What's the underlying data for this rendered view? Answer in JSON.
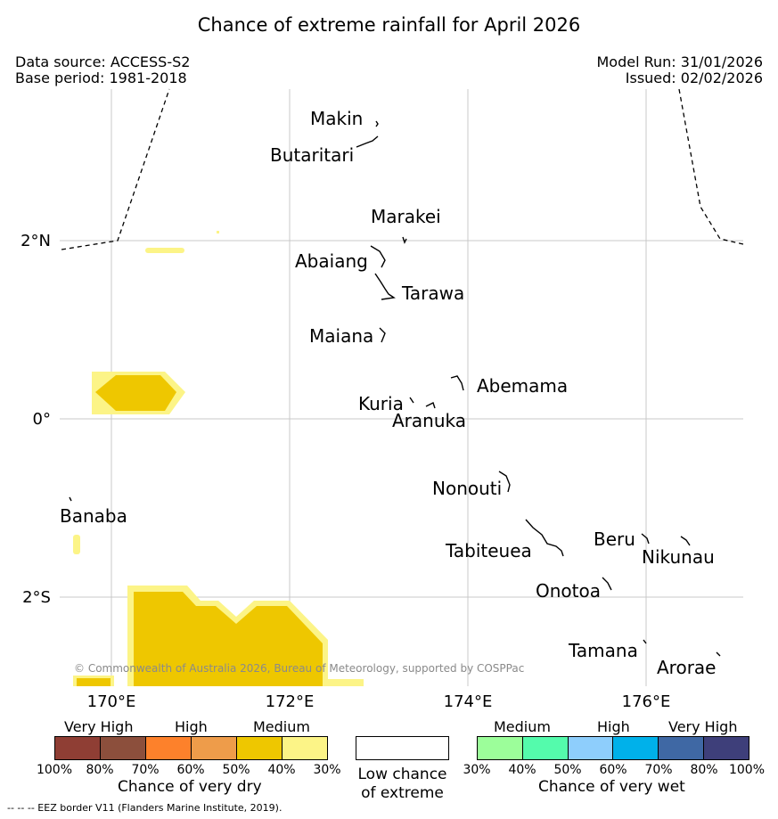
{
  "title": "Chance of extreme rainfall for April 2026",
  "header": {
    "data_source": "Data source: ACCESS-S2",
    "base_period": "Base period: 1981-2018",
    "model_run": "Model Run: 31/01/2026",
    "issued": "Issued: 02/02/2026"
  },
  "map": {
    "lon_range": [
      169.43,
      177.1
    ],
    "lat_range": [
      -3.0,
      3.7
    ],
    "gridlines": {
      "longitudes": [
        170,
        172,
        174,
        176
      ],
      "latitudes": [
        -2,
        0,
        2
      ]
    },
    "x_tick_labels": [
      "170°E",
      "172°E",
      "174°E",
      "176°E"
    ],
    "y_tick_labels": [
      "2°S",
      "0°",
      "2°N"
    ],
    "place_labels": [
      "Makin",
      "Butaritari",
      "Marakei",
      "Abaiang",
      "Tarawa",
      "Maiana",
      "Abemama",
      "Kuria",
      "Aranuka",
      "Banaba",
      "Nonouti",
      "Tabiteuea",
      "Beru",
      "Nikunau",
      "Onotoa",
      "Tamana",
      "Arorae"
    ],
    "copyright": "© Commonwealth of Australia 2026, Bureau of Meteorology, supported by COSPPac",
    "areas": [
      {
        "category": "medium-dry-30-40",
        "color": "#fcf487"
      },
      {
        "category": "medium-dry-40-50",
        "color": "#eec700"
      }
    ]
  },
  "legend_dry": {
    "categories": [
      "Very High",
      "High",
      "Medium"
    ],
    "colors": [
      "#8f3e34",
      "#8c4f3c",
      "#fd812b",
      "#ee9c4a",
      "#eec700",
      "#fcf487"
    ],
    "ticks": [
      "100%",
      "80%",
      "70%",
      "60%",
      "50%",
      "40%",
      "30%"
    ],
    "title": "Chance of very dry"
  },
  "legend_neutral": {
    "color": "#ffffff",
    "title_line1": "Low chance",
    "title_line2": "of extreme"
  },
  "legend_wet": {
    "categories": [
      "Medium",
      "High",
      "Very High"
    ],
    "colors": [
      "#9cfe9a",
      "#54fbac",
      "#8ecefc",
      "#00b1ea",
      "#3f68a4",
      "#3e3f7a"
    ],
    "ticks": [
      "30%",
      "40%",
      "50%",
      "60%",
      "70%",
      "80%",
      "100%"
    ],
    "title": "Chance of very wet"
  },
  "footer": "-- -- -- EEZ border V11 (Flanders Marine Institute, 2019)."
}
